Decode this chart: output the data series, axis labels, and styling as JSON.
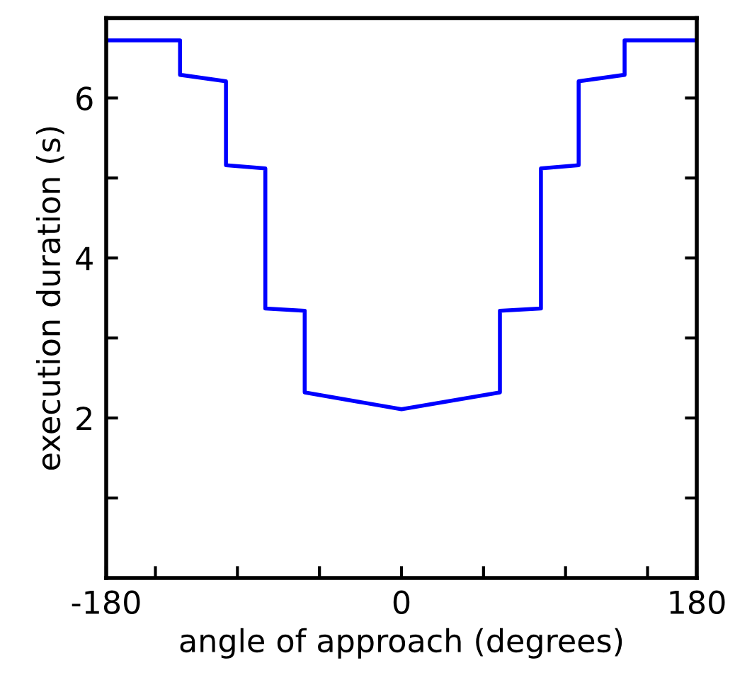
{
  "chart_data": {
    "type": "line",
    "xlabel": "angle of approach (degrees)",
    "ylabel": "execution duration (s)",
    "x": [
      -180,
      -135,
      -135,
      -107,
      -107,
      -83,
      -83,
      -59,
      -59,
      0,
      60,
      60,
      85,
      85,
      108,
      108,
      136,
      136,
      180
    ],
    "series": [
      {
        "color": "#0000ff",
        "values": [
          6.72,
          6.72,
          6.29,
          6.21,
          5.16,
          5.12,
          3.37,
          3.34,
          2.32,
          2.11,
          2.32,
          3.34,
          3.37,
          5.12,
          5.16,
          6.21,
          6.29,
          6.72,
          6.72
        ]
      }
    ],
    "xlim": [
      -180,
      180
    ],
    "ylim": [
      0,
      7
    ],
    "xticks": [
      -180,
      {
        "value": -150,
        "label": null
      },
      {
        "value": -100,
        "label": null
      },
      {
        "value": -50,
        "label": null
      },
      0,
      {
        "value": 50,
        "label": null
      },
      {
        "value": 100,
        "label": null
      },
      {
        "value": 150,
        "label": null
      },
      180
    ],
    "yticks": [
      {
        "value": 1,
        "label": null
      },
      2,
      {
        "value": 3,
        "label": null
      },
      4,
      {
        "value": 5,
        "label": null
      },
      6
    ],
    "grid": false,
    "marker": "none",
    "line_style": "solid"
  }
}
